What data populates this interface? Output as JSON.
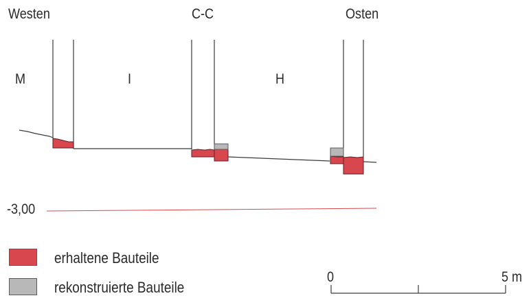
{
  "labels": {
    "west": "Westen",
    "cut": "C-C",
    "east": "Osten",
    "room_m": "M",
    "room_i": "I",
    "room_h": "H",
    "level": "-3,00"
  },
  "legend": {
    "preserved": {
      "label": "erhaltene Bauteile",
      "color": "#d9474e"
    },
    "reconstructed": {
      "label": "rekonstruierte Bauteile",
      "color": "#b8b8b8"
    }
  },
  "scale_bar": {
    "start": "0",
    "end": "5 m"
  },
  "colors": {
    "line": "#3a3a3a",
    "level_line": "#d9474e"
  }
}
